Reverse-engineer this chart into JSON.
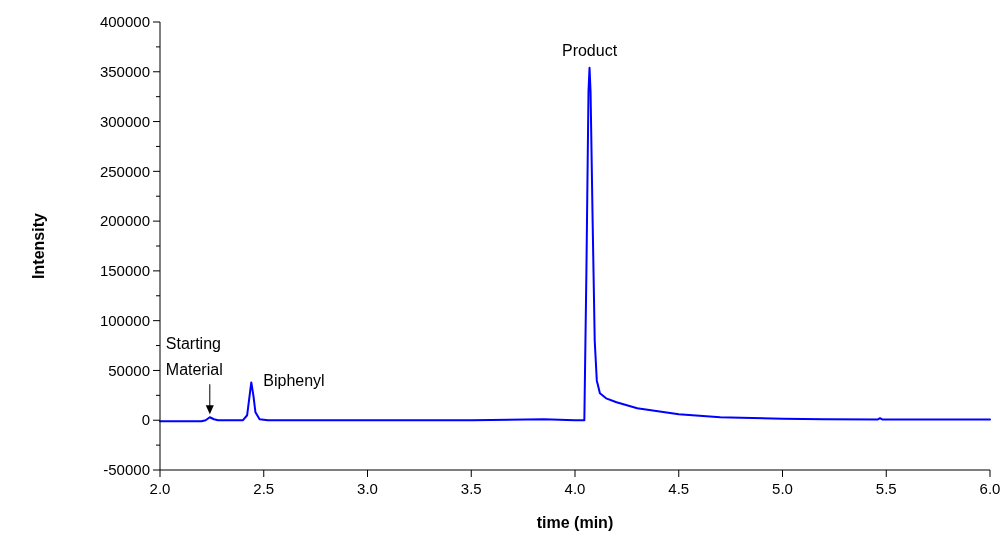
{
  "chart_data": {
    "type": "line",
    "xlabel": "time (min)",
    "ylabel": "Intensity",
    "series": [
      {
        "color": "#0000ff",
        "x": [
          2.0,
          2.1,
          2.2,
          2.22,
          2.24,
          2.26,
          2.28,
          2.4,
          2.42,
          2.435,
          2.44,
          2.45,
          2.46,
          2.48,
          2.52,
          2.6,
          3.0,
          3.5,
          3.85,
          4.0,
          4.045,
          4.055,
          4.065,
          4.07,
          4.075,
          4.085,
          4.095,
          4.105,
          4.12,
          4.15,
          4.2,
          4.3,
          4.4,
          4.5,
          4.6,
          4.7,
          4.8,
          5.0,
          5.2,
          5.46,
          5.47,
          5.48,
          5.6,
          5.8,
          6.0
        ],
        "values": [
          -1000,
          -1000,
          -1000,
          0,
          3000,
          1000,
          0,
          0,
          5000,
          30000,
          38000,
          25000,
          8000,
          1000,
          0,
          0,
          0,
          0,
          1000,
          0,
          0,
          150000,
          330000,
          354000,
          330000,
          200000,
          80000,
          40000,
          27000,
          22000,
          18000,
          12000,
          9000,
          6000,
          4500,
          3000,
          2500,
          1500,
          1000,
          800,
          2000,
          800,
          800,
          800,
          800
        ]
      }
    ],
    "xlim": [
      2.0,
      6.0
    ],
    "xticks": [
      {
        "value": 2.0,
        "label": "2.0"
      },
      {
        "value": 2.5,
        "label": "2.5"
      },
      {
        "value": 3.0,
        "label": "3.0"
      },
      {
        "value": 3.5,
        "label": "3.5"
      },
      {
        "value": 4.0,
        "label": "4.0"
      },
      {
        "value": 4.5,
        "label": "4.5"
      },
      {
        "value": 5.0,
        "label": "5.0"
      },
      {
        "value": 5.5,
        "label": "5.5"
      },
      {
        "value": 6.0,
        "label": "6.0"
      }
    ],
    "ylim": [
      -50000,
      400000
    ],
    "yticks": [
      -50000,
      {
        "value": -25000,
        "label": null
      },
      0,
      {
        "value": 25000,
        "label": null
      },
      50000,
      {
        "value": 75000,
        "label": null
      },
      100000,
      {
        "value": 125000,
        "label": null
      },
      150000,
      {
        "value": 175000,
        "label": null
      },
      200000,
      {
        "value": 225000,
        "label": null
      },
      250000,
      {
        "value": 275000,
        "label": null
      },
      300000,
      {
        "value": 325000,
        "label": null
      },
      350000,
      {
        "value": 375000,
        "label": null
      },
      400000
    ],
    "annotations": [
      {
        "text": "Starting\nMaterial",
        "x": 2.24,
        "y": 3000
      },
      {
        "text": "Biphenyl",
        "x": 2.44,
        "y": 38000
      },
      {
        "text": "Product",
        "x": 4.07,
        "y": 354000
      }
    ]
  }
}
